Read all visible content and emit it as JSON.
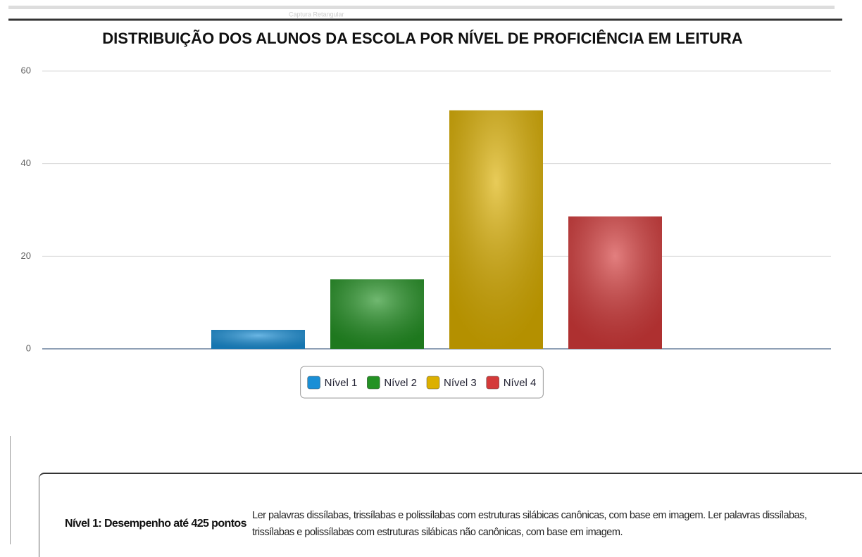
{
  "overlay_text": "Captura Retangular",
  "chart_data": {
    "type": "bar",
    "title": "DISTRIBUIÇÃO DOS ALUNOS DA ESCOLA POR NÍVEL DE PROFICIÊNCIA EM LEITURA",
    "categories": [
      null
    ],
    "series": [
      {
        "name": "Nível 1",
        "color": "#1a8fd6",
        "values": [
          4.1
        ]
      },
      {
        "name": "Nível 2",
        "color": "#249224",
        "values": [
          15.0
        ]
      },
      {
        "name": "Nível 3",
        "color": "#dcb000",
        "values": [
          51.5
        ]
      },
      {
        "name": "Nível 4",
        "color": "#d43a3a",
        "values": [
          28.6
        ]
      }
    ],
    "ylim": [
      0,
      60
    ],
    "yticks": [
      0,
      20,
      40,
      60
    ],
    "grid": true,
    "legend": "bottom"
  },
  "levels": [
    {
      "label": "Nível 1: Desempenho até 425 pontos",
      "description": "Ler palavras dissílabas, trissílabas e polissílabas com estruturas silábicas canônicas, com base em imagem. Ler palavras dissílabas, trissílabas e polissílabas com estruturas silábicas não canônicas, com base em imagem."
    }
  ]
}
